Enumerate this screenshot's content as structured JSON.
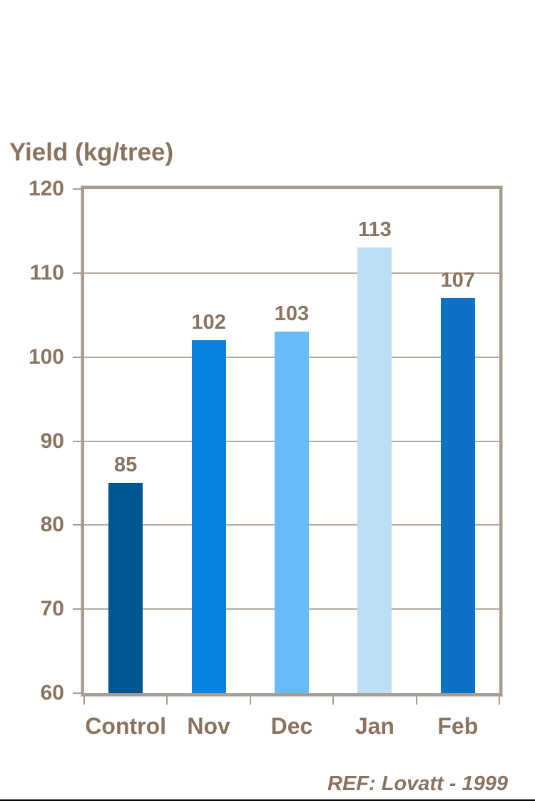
{
  "chart_data": {
    "type": "bar",
    "title": "Yield (kg/tree)",
    "categories": [
      "Control",
      "Nov",
      "Dec",
      "Jan",
      "Feb"
    ],
    "values": [
      85,
      102,
      103,
      113,
      107
    ],
    "value_labels_shown": true,
    "bar_colors": [
      "#005691",
      "#0682e2",
      "#66bbf8",
      "#bcdff8",
      "#0b72c6"
    ],
    "ylim": [
      60,
      120
    ],
    "yticks": [
      120,
      110,
      100,
      90,
      80,
      70,
      60
    ],
    "grid": true,
    "legend": "none",
    "text_color": "#8a7460",
    "frame_color": "#a89c90",
    "gridline_color": "#b5aba0",
    "ref": "REF: Lovatt - 1999"
  }
}
